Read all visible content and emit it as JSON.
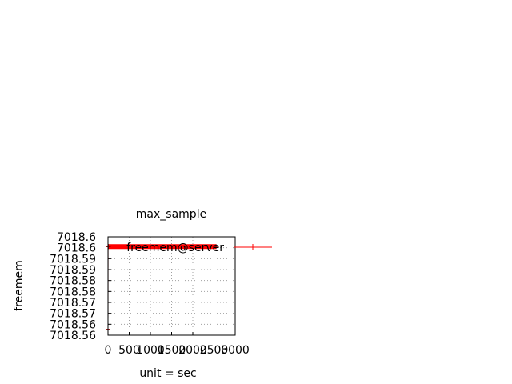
{
  "chart_data": {
    "type": "line",
    "title": "max_sample",
    "xlabel": "unit = sec",
    "ylabel": "freemem",
    "xlim": [
      0,
      3000
    ],
    "ylim": [
      7018.555,
      7018.605
    ],
    "x_ticks": [
      "0",
      "500",
      "1000",
      "1500",
      "2000",
      "2500",
      "3000"
    ],
    "y_ticks": [
      "7018.56",
      "7018.56",
      "7018.57",
      "7018.57",
      "7018.58",
      "7018.58",
      "7018.59",
      "7018.59",
      "7018.6",
      "7018.6"
    ],
    "grid": true,
    "legend_position": "top-right",
    "series": [
      {
        "name": "freemem@server",
        "color": "#ff0000",
        "x": [
          0,
          2,
          10,
          2550
        ],
        "y": [
          7018.558,
          7018.6,
          7018.6,
          7018.6
        ]
      }
    ]
  }
}
